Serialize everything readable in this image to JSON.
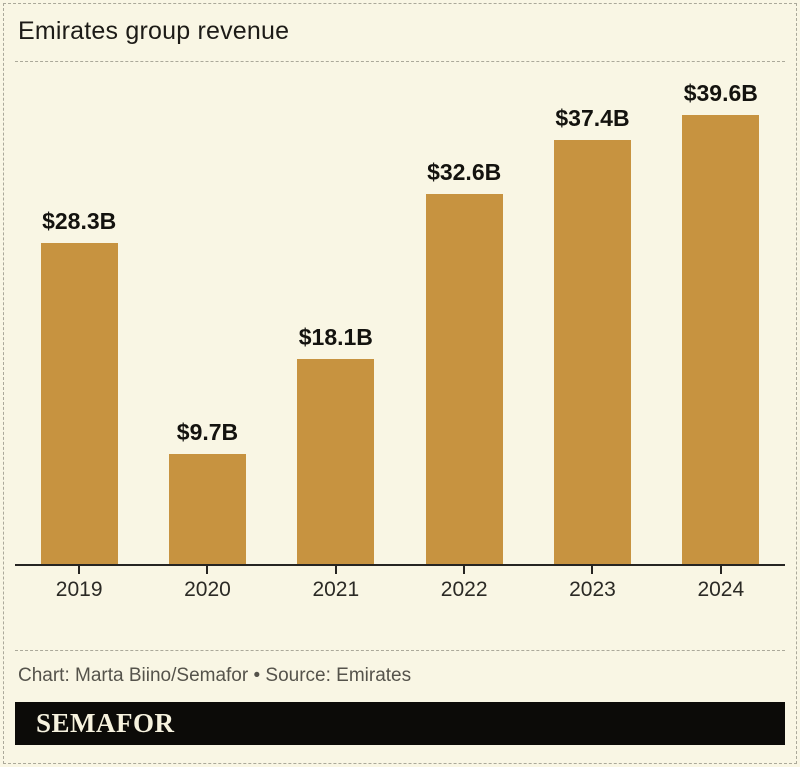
{
  "header": {
    "title": "Emirates group revenue"
  },
  "chart_data": {
    "type": "bar",
    "title": "Emirates group revenue",
    "categories": [
      "2019",
      "2020",
      "2021",
      "2022",
      "2023",
      "2024"
    ],
    "values": [
      28.3,
      9.7,
      18.1,
      32.6,
      37.4,
      39.6
    ],
    "value_labels": [
      "$28.3B",
      "$9.7B",
      "$18.1B",
      "$32.6B",
      "$37.4B",
      "$39.6B"
    ],
    "xlabel": "",
    "ylabel": "",
    "ylim": [
      0,
      39.6
    ],
    "grid": false,
    "legend": false,
    "bar_color": "#C79340",
    "axis_color": "#262522"
  },
  "footer": {
    "credit": "Chart: Marta Biino/Semafor • Source: Emirates",
    "logo_text": "SEMAFOR"
  },
  "colors": {
    "background": "#F9F6E4",
    "bar": "#C79340",
    "title_text": "#1D1B17",
    "value_label_text": "#14130F",
    "tick_label_text": "#2B2A25",
    "credit_text": "#55534B",
    "dash_border": "#ABA99A",
    "logo_background": "#0C0B08",
    "logo_text": "#F6F2DE"
  }
}
